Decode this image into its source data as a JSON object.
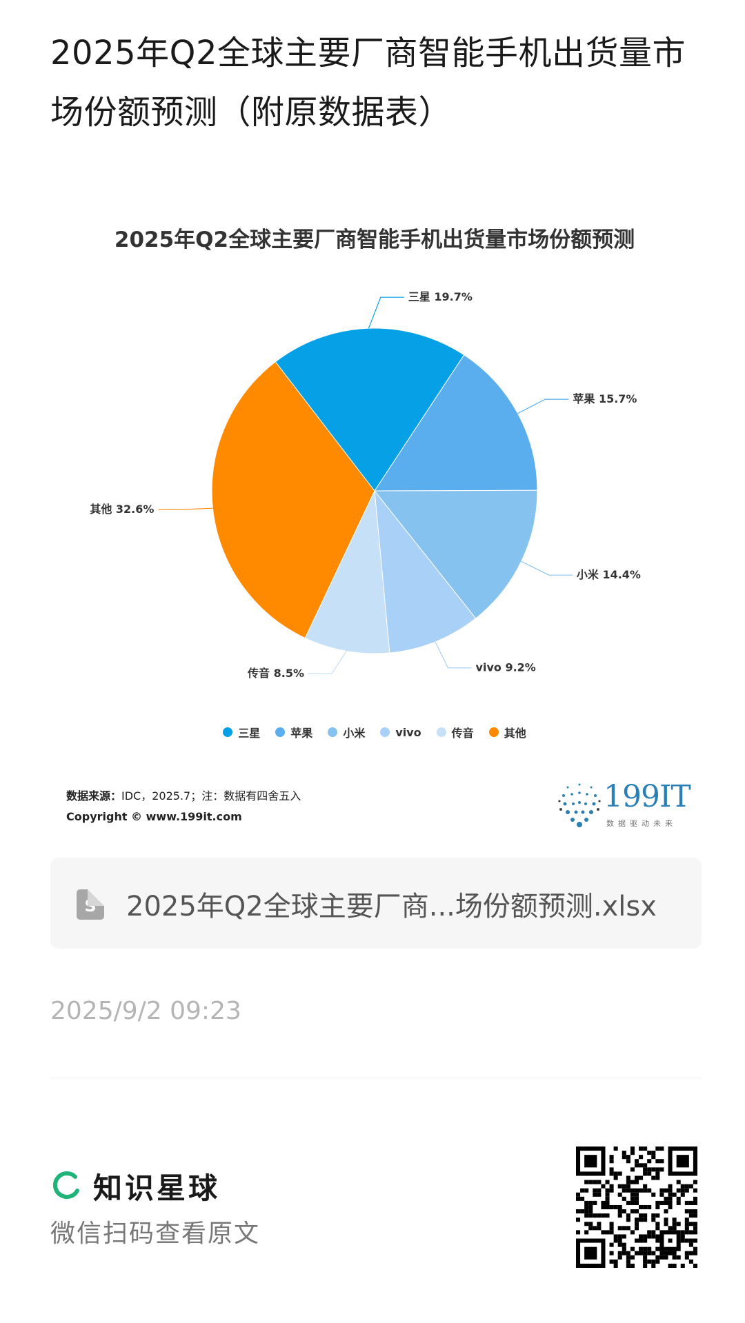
{
  "page": {
    "title": "2025年Q2全球主要厂商智能手机出货量市场份额预测（附原数据表）"
  },
  "chart_data": {
    "type": "pie",
    "title": "2025年Q2全球主要厂商智能手机出货量市场份额预测",
    "categories": [
      "三星",
      "苹果",
      "小米",
      "vivo",
      "传音",
      "其他"
    ],
    "values": [
      19.7,
      15.7,
      14.4,
      9.2,
      8.5,
      32.6
    ],
    "labels": [
      "三星 19.7%",
      "苹果 15.7%",
      "小米 14.4%",
      "vivo 9.2%",
      "传音 8.5%",
      "其他 32.6%"
    ],
    "colors": [
      "#05A0E6",
      "#5AAEED",
      "#86C2F0",
      "#A9D0F7",
      "#C6E0F8",
      "#FF8A00"
    ],
    "unit": "%",
    "legend": "bottom"
  },
  "source": {
    "label": "数据来源：",
    "text": "IDC，2025.7；注：数据有四舍五入",
    "copyright": "Copyright © www.199it.com"
  },
  "logo": {
    "text": "199IT",
    "tagline": "数据驱动未来"
  },
  "file": {
    "icon": "file-sheet-icon",
    "name": "2025年Q2全球主要厂商...场份额预测.xlsx"
  },
  "timestamp": "2025/9/2 09:23",
  "footer": {
    "brand": "知识星球",
    "sub": "微信扫码查看原文",
    "qr_icon": "qr-code-icon"
  }
}
